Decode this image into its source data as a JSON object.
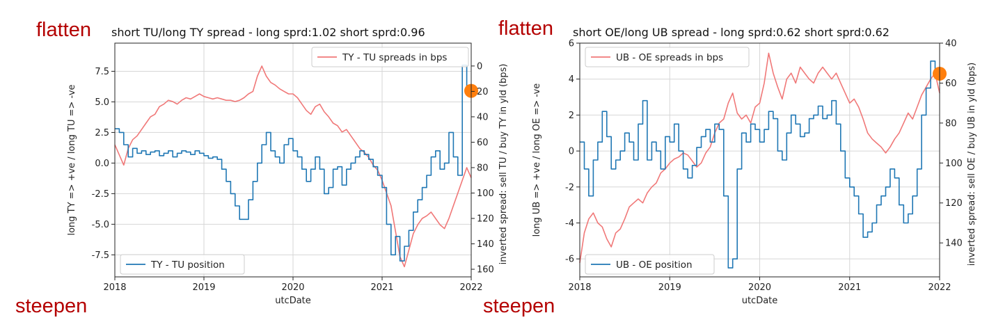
{
  "colors": {
    "position": "#1f77b4",
    "spread": "#f07878",
    "marker": "#ff7f0e",
    "annot": "#b40000"
  },
  "chart_data": [
    {
      "type": "line",
      "title": "short TU/long TY spread - long sprd:1.02 short sprd:0.96",
      "annotation_top": "flatten",
      "annotation_bottom": "steepen",
      "xlabel": "utcDate",
      "ylabel_left": "long TY => +ve / long TU => -ve",
      "ylabel_right": "inverted spread: sell TU / buy TY in yld (bps)",
      "x_ticks": [
        "2018",
        "2019",
        "2020",
        "2021",
        "2022"
      ],
      "xlim": [
        2018.0,
        2022.0
      ],
      "ylim_left": [
        -9.3,
        9.8
      ],
      "yticks_left": [
        -7.5,
        -5.0,
        -2.5,
        0.0,
        2.5,
        5.0,
        7.5
      ],
      "ylim_right": [
        166,
        -18
      ],
      "yticks_right": [
        0,
        20,
        40,
        60,
        80,
        100,
        120,
        140,
        160
      ],
      "grid": true,
      "legend_position": "top-right / bottom-left",
      "marker": {
        "x": 2022.0,
        "y_left": 5.9
      },
      "series": [
        {
          "name": "TY - TU spreads in bps",
          "axis": "right",
          "x": [
            2018.0,
            2018.05,
            2018.1,
            2018.15,
            2018.2,
            2018.25,
            2018.3,
            2018.35,
            2018.4,
            2018.45,
            2018.5,
            2018.55,
            2018.6,
            2018.65,
            2018.7,
            2018.75,
            2018.8,
            2018.85,
            2018.9,
            2018.95,
            2019.0,
            2019.05,
            2019.1,
            2019.15,
            2019.2,
            2019.25,
            2019.3,
            2019.35,
            2019.4,
            2019.45,
            2019.5,
            2019.55,
            2019.6,
            2019.65,
            2019.7,
            2019.75,
            2019.8,
            2019.85,
            2019.9,
            2019.95,
            2020.0,
            2020.05,
            2020.1,
            2020.15,
            2020.2,
            2020.25,
            2020.3,
            2020.35,
            2020.4,
            2020.45,
            2020.5,
            2020.55,
            2020.6,
            2020.65,
            2020.7,
            2020.75,
            2020.8,
            2020.85,
            2020.9,
            2020.95,
            2021.0,
            2021.05,
            2021.1,
            2021.15,
            2021.2,
            2021.25,
            2021.3,
            2021.35,
            2021.4,
            2021.45,
            2021.5,
            2021.55,
            2021.6,
            2021.65,
            2021.7,
            2021.75,
            2021.8,
            2021.85,
            2021.9,
            2021.95,
            2022.0
          ],
          "values": [
            62,
            70,
            78,
            65,
            58,
            55,
            50,
            45,
            40,
            38,
            32,
            30,
            27,
            28,
            30,
            27,
            25,
            26,
            24,
            22,
            24,
            25,
            26,
            25,
            26,
            27,
            27,
            28,
            27,
            25,
            22,
            20,
            8,
            0,
            8,
            13,
            15,
            18,
            20,
            22,
            22,
            25,
            30,
            35,
            38,
            32,
            30,
            36,
            40,
            45,
            47,
            52,
            50,
            55,
            60,
            65,
            68,
            72,
            78,
            82,
            90,
            100,
            110,
            130,
            150,
            158,
            145,
            132,
            125,
            120,
            118,
            115,
            120,
            125,
            128,
            120,
            110,
            100,
            90,
            80,
            88
          ]
        },
        {
          "name": "TY - TU position",
          "axis": "left",
          "x": [
            2018.0,
            2018.05,
            2018.1,
            2018.15,
            2018.2,
            2018.25,
            2018.3,
            2018.35,
            2018.4,
            2018.45,
            2018.5,
            2018.55,
            2018.6,
            2018.65,
            2018.7,
            2018.75,
            2018.8,
            2018.85,
            2018.9,
            2018.95,
            2019.0,
            2019.05,
            2019.1,
            2019.15,
            2019.2,
            2019.25,
            2019.3,
            2019.35,
            2019.4,
            2019.45,
            2019.5,
            2019.55,
            2019.6,
            2019.65,
            2019.7,
            2019.75,
            2019.8,
            2019.85,
            2019.9,
            2019.95,
            2020.0,
            2020.05,
            2020.1,
            2020.15,
            2020.2,
            2020.25,
            2020.3,
            2020.35,
            2020.4,
            2020.45,
            2020.5,
            2020.55,
            2020.6,
            2020.65,
            2020.7,
            2020.75,
            2020.8,
            2020.85,
            2020.9,
            2020.95,
            2021.0,
            2021.05,
            2021.1,
            2021.15,
            2021.2,
            2021.25,
            2021.3,
            2021.35,
            2021.4,
            2021.45,
            2021.5,
            2021.55,
            2021.6,
            2021.65,
            2021.7,
            2021.75,
            2021.8,
            2021.85,
            2021.9,
            2021.95,
            2022.0
          ],
          "values": [
            2.8,
            2.5,
            1.5,
            0.5,
            1.2,
            0.8,
            1.0,
            0.7,
            0.9,
            1.0,
            0.6,
            0.8,
            1.0,
            0.5,
            0.8,
            1.0,
            0.9,
            0.7,
            1.0,
            0.8,
            0.6,
            0.4,
            0.5,
            0.3,
            -0.5,
            -1.5,
            -2.5,
            -3.5,
            -4.6,
            -4.6,
            -3.0,
            -1.5,
            0.0,
            1.5,
            2.5,
            1.0,
            0.5,
            0.0,
            1.5,
            2.0,
            1.0,
            0.5,
            -0.5,
            -1.5,
            -0.5,
            0.5,
            -0.5,
            -2.5,
            -2.0,
            -0.5,
            -0.3,
            -1.8,
            -0.5,
            0.0,
            0.5,
            1.0,
            0.7,
            0.3,
            -0.3,
            -1.0,
            -2.0,
            -5.0,
            -7.5,
            -6.0,
            -8.0,
            -6.8,
            -5.5,
            -4.0,
            -3.0,
            -2.0,
            -1.0,
            0.5,
            1.0,
            -0.5,
            0.0,
            2.5,
            0.5,
            -1.0,
            8.0,
            6.0,
            5.9
          ]
        }
      ]
    },
    {
      "type": "line",
      "title": "short OE/long UB spread - long sprd:0.62 short sprd:0.62",
      "annotation_top": "flatten",
      "annotation_bottom": "steepen",
      "xlabel": "utcDate",
      "ylabel_left": "long UB => +ve / long OE => -ve",
      "ylabel_right": "inverted spread: sell OE / buy UB in yld (bps)",
      "x_ticks": [
        "2018",
        "2019",
        "2020",
        "2021",
        "2022"
      ],
      "xlim": [
        2018.0,
        2022.0
      ],
      "ylim_left": [
        -7.0,
        6.0
      ],
      "yticks_left": [
        -6,
        -4,
        -2,
        0,
        2,
        4,
        6
      ],
      "ylim_right": [
        157,
        40
      ],
      "yticks_right": [
        40,
        60,
        80,
        100,
        120,
        140
      ],
      "grid": true,
      "legend_position": "top-left / bottom-left",
      "marker": {
        "x": 2022.0,
        "y_left": 4.3
      },
      "series": [
        {
          "name": "UB - OE spreads in bps",
          "axis": "right",
          "x": [
            2018.0,
            2018.05,
            2018.1,
            2018.15,
            2018.2,
            2018.25,
            2018.3,
            2018.35,
            2018.4,
            2018.45,
            2018.5,
            2018.55,
            2018.6,
            2018.65,
            2018.7,
            2018.75,
            2018.8,
            2018.85,
            2018.9,
            2018.95,
            2019.0,
            2019.05,
            2019.1,
            2019.15,
            2019.2,
            2019.25,
            2019.3,
            2019.35,
            2019.4,
            2019.45,
            2019.5,
            2019.55,
            2019.6,
            2019.65,
            2019.7,
            2019.75,
            2019.8,
            2019.85,
            2019.9,
            2019.95,
            2020.0,
            2020.05,
            2020.1,
            2020.15,
            2020.2,
            2020.25,
            2020.3,
            2020.35,
            2020.4,
            2020.45,
            2020.5,
            2020.55,
            2020.6,
            2020.65,
            2020.7,
            2020.75,
            2020.8,
            2020.85,
            2020.9,
            2020.95,
            2021.0,
            2021.05,
            2021.1,
            2021.15,
            2021.2,
            2021.25,
            2021.3,
            2021.35,
            2021.4,
            2021.45,
            2021.5,
            2021.55,
            2021.6,
            2021.65,
            2021.7,
            2021.75,
            2021.8,
            2021.85,
            2021.9,
            2021.95,
            2022.0
          ],
          "values": [
            150,
            135,
            128,
            125,
            130,
            132,
            138,
            142,
            135,
            133,
            128,
            122,
            120,
            118,
            120,
            115,
            112,
            110,
            105,
            103,
            100,
            98,
            97,
            95,
            96,
            99,
            102,
            100,
            95,
            92,
            85,
            80,
            78,
            70,
            65,
            75,
            78,
            76,
            80,
            72,
            70,
            60,
            45,
            55,
            62,
            68,
            58,
            55,
            60,
            52,
            55,
            58,
            60,
            55,
            52,
            55,
            58,
            55,
            60,
            65,
            70,
            68,
            72,
            78,
            85,
            88,
            90,
            92,
            95,
            92,
            88,
            85,
            80,
            75,
            78,
            72,
            66,
            62,
            58,
            55,
            65
          ]
        },
        {
          "name": "UB - OE position",
          "axis": "left",
          "x": [
            2018.0,
            2018.05,
            2018.1,
            2018.15,
            2018.2,
            2018.25,
            2018.3,
            2018.35,
            2018.4,
            2018.45,
            2018.5,
            2018.55,
            2018.6,
            2018.65,
            2018.7,
            2018.75,
            2018.8,
            2018.85,
            2018.9,
            2018.95,
            2019.0,
            2019.05,
            2019.1,
            2019.15,
            2019.2,
            2019.25,
            2019.3,
            2019.35,
            2019.4,
            2019.45,
            2019.5,
            2019.55,
            2019.6,
            2019.65,
            2019.7,
            2019.75,
            2019.8,
            2019.85,
            2019.9,
            2019.95,
            2020.0,
            2020.05,
            2020.1,
            2020.15,
            2020.2,
            2020.25,
            2020.3,
            2020.35,
            2020.4,
            2020.45,
            2020.5,
            2020.55,
            2020.6,
            2020.65,
            2020.7,
            2020.75,
            2020.8,
            2020.85,
            2020.9,
            2020.95,
            2021.0,
            2021.05,
            2021.1,
            2021.15,
            2021.2,
            2021.25,
            2021.3,
            2021.35,
            2021.4,
            2021.45,
            2021.5,
            2021.55,
            2021.6,
            2021.65,
            2021.7,
            2021.75,
            2021.8,
            2021.85,
            2021.9,
            2021.95,
            2022.0
          ],
          "values": [
            0.5,
            -1.0,
            -2.5,
            -0.5,
            0.5,
            2.2,
            0.8,
            -1.0,
            -0.5,
            0.0,
            1.0,
            0.5,
            -0.5,
            1.5,
            2.8,
            -0.5,
            0.5,
            0.0,
            -1.0,
            0.8,
            0.5,
            1.5,
            0.0,
            -1.0,
            -1.5,
            -0.8,
            0.2,
            0.8,
            1.2,
            0.5,
            1.5,
            1.2,
            -2.5,
            -6.5,
            -6.0,
            -1.0,
            1.0,
            0.5,
            1.5,
            1.2,
            0.5,
            1.2,
            2.2,
            1.8,
            0.0,
            -0.5,
            1.0,
            2.0,
            1.5,
            0.8,
            1.0,
            1.8,
            2.0,
            2.5,
            1.8,
            2.0,
            2.8,
            1.5,
            0.0,
            -1.5,
            -2.0,
            -2.5,
            -3.5,
            -4.8,
            -4.5,
            -4.0,
            -3.0,
            -2.5,
            -2.0,
            -1.0,
            -1.5,
            -3.0,
            -4.0,
            -3.5,
            -2.5,
            -1.0,
            2.0,
            3.5,
            5.0,
            4.3,
            4.3
          ]
        }
      ]
    }
  ]
}
